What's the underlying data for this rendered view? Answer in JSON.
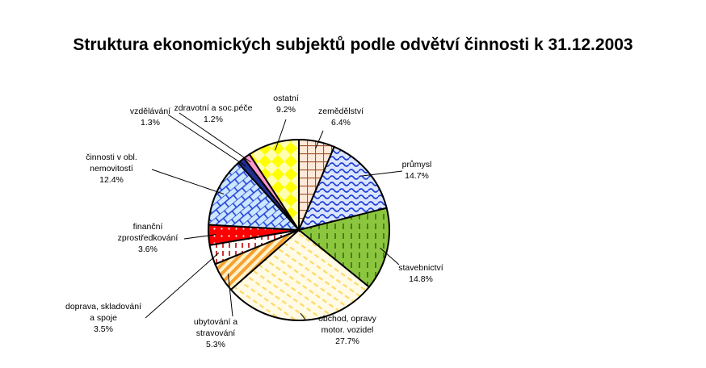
{
  "chart_data": {
    "type": "pie",
    "title": "Struktura ekonomických subjektů podle odvětví činnosti k 31.12.2003",
    "slices": [
      {
        "name": "zemědělství",
        "label_lines": [
          "zemědělství"
        ],
        "value": 6.4,
        "value_label": "6.4%",
        "color": "#f79646",
        "pattern": "grid"
      },
      {
        "name": "průmysl",
        "label_lines": [
          "průmysl"
        ],
        "value": 14.7,
        "value_label": "14.7%",
        "color": "#1f3fd6",
        "pattern": "waves"
      },
      {
        "name": "stavebnictví",
        "label_lines": [
          "stavebnictví"
        ],
        "value": 14.8,
        "value_label": "14.8%",
        "color": "#8cc63f",
        "pattern": "dashes"
      },
      {
        "name": "obchod, opravy motor. vozidel",
        "label_lines": [
          "obchod, opravy",
          "motor. vozidel"
        ],
        "value": 27.7,
        "value_label": "27.7%",
        "color": "#ffd966",
        "pattern": "diag-dashes"
      },
      {
        "name": "ubytování a stravování",
        "label_lines": [
          "ubytování a",
          "stravování"
        ],
        "value": 5.3,
        "value_label": "5.3%",
        "color": "#f7a030",
        "pattern": "diag-stripes"
      },
      {
        "name": "doprava, skladování a spoje",
        "label_lines": [
          "doprava, skladování",
          "a spoje"
        ],
        "value": 3.5,
        "value_label": "3.5%",
        "color": "#c00000",
        "pattern": "vdashes"
      },
      {
        "name": "finanční zprostředkování",
        "label_lines": [
          "finanční",
          "zprostředkování"
        ],
        "value": 3.6,
        "value_label": "3.6%",
        "color": "#ff0000",
        "pattern": "dots"
      },
      {
        "name": "činnosti v obl. nemovitostí",
        "label_lines": [
          "činnosti v obl.",
          "nemovitostí"
        ],
        "value": 12.4,
        "value_label": "12.4%",
        "color": "#1f3fd6",
        "pattern": "bricks"
      },
      {
        "name": "vzdělávání",
        "label_lines": [
          "vzdělávání"
        ],
        "value": 1.3,
        "value_label": "1.3%",
        "color": "#1f2f8f",
        "pattern": "solid"
      },
      {
        "name": "zdravotní a soc.péče",
        "label_lines": [
          "zdravotní a soc.péče"
        ],
        "value": 1.2,
        "value_label": "1.2%",
        "color": "#ff99cc",
        "pattern": "solid"
      },
      {
        "name": "ostatní",
        "label_lines": [
          "ostatní"
        ],
        "value": 9.2,
        "value_label": "9.2%",
        "color": "#ffff00",
        "pattern": "diamonds"
      }
    ],
    "legend": "none"
  }
}
